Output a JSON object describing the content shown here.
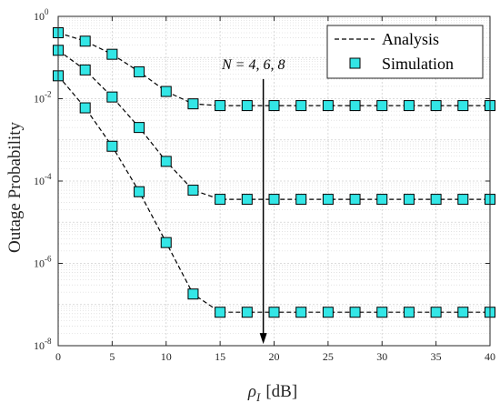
{
  "chart_data": {
    "type": "line",
    "xlabel_symbol": "ρ",
    "xlabel_sub": "I",
    "xlabel_unit": "[dB]",
    "ylabel": "Outage Probability",
    "xlim": [
      0,
      40
    ],
    "ylim": [
      1e-08,
      1
    ],
    "yscale": "log",
    "grid": true,
    "legend_position": "top-right",
    "x_ticks": [
      0,
      5,
      10,
      15,
      20,
      25,
      30,
      35,
      40
    ],
    "y_ticks": [
      {
        "value": 1,
        "base": "10",
        "exp": "0"
      },
      {
        "value": 0.01,
        "base": "10",
        "exp": "-2"
      },
      {
        "value": 0.0001,
        "base": "10",
        "exp": "-4"
      },
      {
        "value": 1e-06,
        "base": "10",
        "exp": "-6"
      },
      {
        "value": 1e-08,
        "base": "10",
        "exp": "-8"
      }
    ],
    "x": [
      0,
      2.5,
      5,
      7.5,
      10,
      12.5,
      15,
      17.5,
      20,
      22.5,
      25,
      27.5,
      30,
      32.5,
      35,
      37.5,
      40
    ],
    "series": [
      {
        "curve": "N4",
        "values": [
          0.4,
          0.25,
          0.12,
          0.045,
          0.015,
          0.0075,
          0.0068,
          0.0068,
          0.0068,
          0.0068,
          0.0068,
          0.0068,
          0.0068,
          0.0068,
          0.0068,
          0.0068,
          0.0068
        ]
      },
      {
        "curve": "N6",
        "values": [
          0.15,
          0.05,
          0.011,
          0.002,
          0.0003,
          6e-05,
          3.6e-05,
          3.6e-05,
          3.6e-05,
          3.6e-05,
          3.6e-05,
          3.6e-05,
          3.6e-05,
          3.6e-05,
          3.6e-05,
          3.6e-05,
          3.6e-05
        ]
      },
      {
        "curve": "N8",
        "values": [
          0.036,
          0.006,
          0.0007,
          5.5e-05,
          3.2e-06,
          1.8e-07,
          6.5e-08,
          6.5e-08,
          6.5e-08,
          6.5e-08,
          6.5e-08,
          6.5e-08,
          6.5e-08,
          6.5e-08,
          6.5e-08,
          6.5e-08,
          6.5e-08
        ]
      }
    ],
    "legend": [
      {
        "label": "Analysis",
        "style": "dashed-line"
      },
      {
        "label": "Simulation",
        "style": "square-marker"
      }
    ],
    "annotation": {
      "text": "N = 4, 6, 8",
      "arrow_x": 19,
      "arrow_from_y": 0.03,
      "arrow_to_y": 1.1e-08
    },
    "colors": {
      "marker_fill": "#33e6e6",
      "marker_edge": "#000000",
      "line": "#000000",
      "grid": "#d0d0d0"
    }
  }
}
